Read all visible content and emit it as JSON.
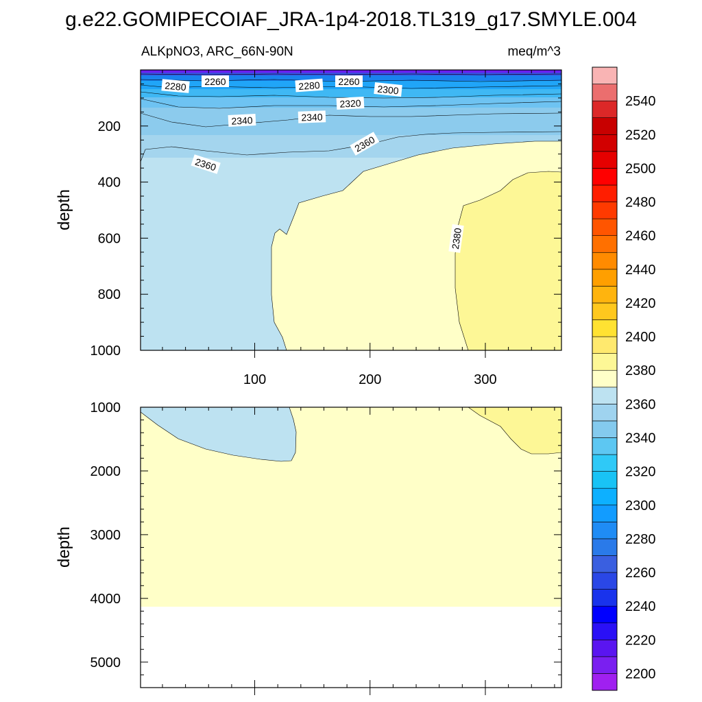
{
  "title": "g.e22.GOMIPECOIAF_JRA-1p4-2018.TL319_g17.SMYLE.004",
  "colors": {
    "band_2360": "#bde2f1",
    "band_2380": "#ffffc8",
    "band_2400": "#fdf796",
    "missing": "#ffffff",
    "axis": "#000000"
  },
  "chart_data": {
    "type": "contour",
    "subtitle_left": "ALKpNO3, ARC_66N-90N",
    "subtitle_right": "meq/m^3",
    "xlabel": "",
    "ylabel": "depth",
    "xlim": [
      1,
      366
    ],
    "x_ticks": [
      100,
      200,
      300
    ],
    "x_tick_labels": [
      "100",
      "200",
      "300"
    ],
    "panels": [
      {
        "name": "upper",
        "ylim": [
          0,
          1000
        ],
        "y_ticks": [
          200,
          400,
          600,
          800,
          1000
        ],
        "y_tick_labels": [
          "200",
          "400",
          "600",
          "800",
          "1000"
        ],
        "contour_labels": [
          {
            "text": "2280",
            "x": 30,
            "depth": 55
          },
          {
            "text": "2260",
            "x": 65,
            "depth": 45
          },
          {
            "text": "2280",
            "x": 147,
            "depth": 55
          },
          {
            "text": "2260",
            "x": 182,
            "depth": 45
          },
          {
            "text": "2300",
            "x": 215,
            "depth": 70
          },
          {
            "text": "2320",
            "x": 182,
            "depth": 120
          },
          {
            "text": "2340",
            "x": 88,
            "depth": 175
          },
          {
            "text": "2340",
            "x": 150,
            "depth": 165
          },
          {
            "text": "2360",
            "x": 57,
            "depth": 330
          },
          {
            "text": "2360",
            "x": 196,
            "depth": 265
          },
          {
            "text": "2380",
            "x": 275,
            "depth": 590
          }
        ]
      },
      {
        "name": "lower",
        "ylim": [
          1000,
          5400
        ],
        "y_ticks": [
          1000,
          2000,
          3000,
          4000,
          5000
        ],
        "y_tick_labels": [
          "1000",
          "2000",
          "3000",
          "4000",
          "5000"
        ],
        "seafloor_depth": 4130,
        "contour_labels": []
      }
    ],
    "colorbar": {
      "levels": [
        2200,
        2220,
        2240,
        2260,
        2280,
        2300,
        2320,
        2340,
        2360,
        2380,
        2400,
        2420,
        2440,
        2460,
        2480,
        2500,
        2520,
        2540
      ],
      "level_labels": [
        "2200",
        "2220",
        "2240",
        "2260",
        "2280",
        "2300",
        "2320",
        "2340",
        "2360",
        "2380",
        "2400",
        "2420",
        "2440",
        "2460",
        "2480",
        "2500",
        "2520",
        "2540"
      ],
      "colors": [
        "#a020f0",
        "#7a1ff0",
        "#5a15f0",
        "#2a10f6",
        "#0000ff",
        "#1933ec",
        "#2a47e6",
        "#3a5fe0",
        "#2a7ae9",
        "#1f8cf5",
        "#129cff",
        "#0db0ff",
        "#19c3f5",
        "#2fc9f7",
        "#5dc7f2",
        "#84caee",
        "#9fd3ef",
        "#bde2f1",
        "#ffffc8",
        "#fdf796",
        "#ffe96e",
        "#ffe232",
        "#ffc81e",
        "#ffb40e",
        "#ff9f00",
        "#ff8b00",
        "#ff7000",
        "#ff5500",
        "#ff3a00",
        "#ff1e00",
        "#ff0000",
        "#e60000",
        "#d20000",
        "#c80000",
        "#dc2828",
        "#eb6e6e",
        "#f9b4b4"
      ]
    }
  }
}
